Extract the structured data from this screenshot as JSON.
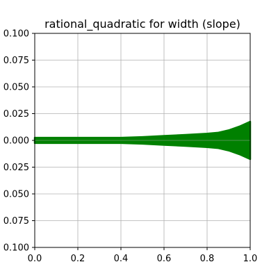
{
  "chart_data": {
    "type": "area",
    "title": "rational_quadratic for width (slope)",
    "xlabel": "",
    "ylabel": "",
    "xlim": [
      0.0,
      1.0
    ],
    "ylim": [
      -0.1,
      0.1
    ],
    "x_ticks": [
      0.0,
      0.2,
      0.4,
      0.6,
      0.8,
      1.0
    ],
    "x_tick_labels": [
      "0.0",
      "0.2",
      "0.4",
      "0.6",
      "0.8",
      "1.0"
    ],
    "y_ticks": [
      0.1,
      0.075,
      0.05,
      0.025,
      0.0,
      -0.025,
      -0.05,
      -0.075,
      -0.1
    ],
    "y_tick_labels": [
      "0.100",
      "0.075",
      "0.050",
      "0.025",
      "0.000",
      "0.025",
      "0.050",
      "0.075",
      "0.100"
    ],
    "grid": true,
    "series": [
      {
        "color": "#008000",
        "x": [
          0.0,
          0.1,
          0.2,
          0.3,
          0.4,
          0.5,
          0.6,
          0.7,
          0.8,
          0.85,
          0.9,
          0.95,
          1.0
        ],
        "upper": [
          0.0025,
          0.0025,
          0.0025,
          0.0025,
          0.0025,
          0.0032,
          0.0042,
          0.0052,
          0.0063,
          0.0072,
          0.0095,
          0.013,
          0.0175
        ],
        "lower": [
          -0.0025,
          -0.0025,
          -0.0025,
          -0.0025,
          -0.0025,
          -0.0032,
          -0.0042,
          -0.0052,
          -0.0063,
          -0.0072,
          -0.0095,
          -0.013,
          -0.0175
        ]
      }
    ]
  }
}
